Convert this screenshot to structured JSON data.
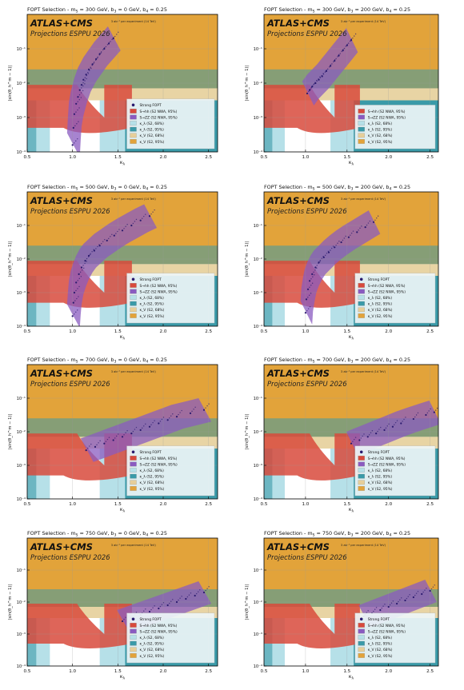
{
  "chart_data": [
    {
      "type": "scatter",
      "title": "FOPT Selection - m_S = 300 GeV, b_3 = 0 GeV, b_4 = 0.25",
      "title_main": "FOPT Selection - m",
      "title_m_sub": "S",
      "title_mid": " = 300 GeV, b",
      "title_b3_sub": "3",
      "title_mid2": " = 0 GeV, b",
      "title_b4_sub": "4",
      "title_end": " = 0.25",
      "xlabel": "κ_λ",
      "xlabel_main": "κ",
      "xlabel_sub": "λ",
      "ylabel": "|sin(θ_h^m − 1)|",
      "xlim": [
        0.5,
        2.6
      ],
      "ylim_log10": [
        -4,
        0
      ],
      "xticks": [
        0.5,
        1.0,
        1.5,
        2.0,
        2.5
      ],
      "xticklabels": [
        "0.5",
        "1.0",
        "1.5",
        "2.0",
        "2.5"
      ],
      "yticks_log10": [
        -4,
        -3,
        -2,
        -1
      ],
      "yticklabels": [
        "10⁻⁴",
        "10⁻³",
        "10⁻²",
        "10⁻¹"
      ],
      "experiment": "ATLAS+CMS",
      "projection": "Projections ESPPU 2026",
      "lumi": "3 ab⁻¹ per experiment (14 TeV)",
      "series": [
        {
          "name": "Strong FOPT",
          "points": [
            [
              1.0,
              -3.8
            ],
            [
              1.01,
              -3.3
            ],
            [
              1.02,
              -2.9
            ],
            [
              1.04,
              -2.6
            ],
            [
              1.06,
              -2.4
            ],
            [
              1.08,
              -2.2
            ],
            [
              1.1,
              -2.05
            ],
            [
              1.12,
              -1.9
            ],
            [
              1.15,
              -1.75
            ],
            [
              1.18,
              -1.6
            ],
            [
              1.22,
              -1.45
            ],
            [
              1.26,
              -1.3
            ],
            [
              1.3,
              -1.15
            ],
            [
              1.35,
              -1.0
            ],
            [
              1.4,
              -0.85
            ],
            [
              1.45,
              -0.7
            ]
          ]
        }
      ],
      "legend": [
        "Strong FOPT",
        "S→hh (S2 NWA, 95%)",
        "S→ZZ (S2 NWA, 95%)",
        "κ_λ (S2, 68%)",
        "κ_λ (S2, 95%)",
        "κ_V (S2, 68%)",
        "κ_V (S2, 95%)"
      ],
      "legend_loc": "lower right"
    },
    {
      "type": "scatter",
      "title": "FOPT Selection - m_S = 300 GeV, b_3 = 200 GeV, b_4 = 0.25",
      "title_main": "FOPT Selection - m",
      "title_m_sub": "S",
      "title_mid": " = 300 GeV, b",
      "title_b3_sub": "3",
      "title_mid2": " = 200 GeV, b",
      "title_b4_sub": "4",
      "title_end": " = 0.25",
      "xlabel": "κ_λ",
      "xlabel_main": "κ",
      "xlabel_sub": "λ",
      "ylabel": "|sin(θ_h^m − 1)|",
      "xlim": [
        0.5,
        2.6
      ],
      "ylim_log10": [
        -4,
        0
      ],
      "xticks": [
        0.5,
        1.0,
        1.5,
        2.0,
        2.5
      ],
      "xticklabels": [
        "0.5",
        "1.0",
        "1.5",
        "2.0",
        "2.5"
      ],
      "yticks_log10": [
        -4,
        -3,
        -2,
        -1
      ],
      "yticklabels": [
        "10⁻⁴",
        "10⁻³",
        "10⁻²",
        "10⁻¹"
      ],
      "experiment": "ATLAS+CMS",
      "projection": "Projections ESPPU 2026",
      "lumi": "3 ab⁻¹ per experiment (14 TeV)",
      "series": [
        {
          "name": "Strong FOPT",
          "points": [
            [
              1.02,
              -2.3
            ],
            [
              1.05,
              -2.2
            ],
            [
              1.08,
              -2.1
            ],
            [
              1.12,
              -2.0
            ],
            [
              1.16,
              -1.9
            ],
            [
              1.2,
              -1.8
            ],
            [
              1.25,
              -1.65
            ],
            [
              1.3,
              -1.5
            ],
            [
              1.35,
              -1.35
            ],
            [
              1.4,
              -1.2
            ],
            [
              1.45,
              -1.05
            ],
            [
              1.5,
              -0.9
            ],
            [
              1.55,
              -0.75
            ]
          ]
        }
      ],
      "legend": [
        "S→hh (S2 NWA, 95%)",
        "S→ZZ (S2 NWA, 95%)",
        "κ_λ (S2, 68%)",
        "κ_λ (S2, 95%)",
        "κ_V (S2, 68%)",
        "κ_V (S2, 95%)"
      ],
      "legend_loc": "lower right"
    },
    {
      "type": "scatter",
      "title": "FOPT Selection - m_S = 500 GeV, b_3 = 0 GeV, b_4 = 0.25",
      "title_main": "FOPT Selection - m",
      "title_m_sub": "S",
      "title_mid": " = 500 GeV, b",
      "title_b3_sub": "3",
      "title_mid2": " = 0 GeV, b",
      "title_b4_sub": "4",
      "title_end": " = 0.25",
      "xlabel": "κ_λ",
      "xlabel_main": "κ",
      "xlabel_sub": "λ",
      "ylabel": "|sin(θ_h^m − 1)|",
      "xlim": [
        0.5,
        2.6
      ],
      "ylim_log10": [
        -4,
        0
      ],
      "xticks": [
        0.5,
        1.0,
        1.5,
        2.0,
        2.5
      ],
      "xticklabels": [
        "0.5",
        "1.0",
        "1.5",
        "2.0",
        "2.5"
      ],
      "yticks_log10": [
        -4,
        -3,
        -2,
        -1
      ],
      "yticklabels": [
        "10⁻⁴",
        "10⁻³",
        "10⁻²",
        "10⁻¹"
      ],
      "experiment": "ATLAS+CMS",
      "projection": "Projections ESPPU 2026",
      "lumi": "3 ab⁻¹ per experiment (14 TeV)",
      "series": [
        {
          "name": "Strong FOPT",
          "points": [
            [
              1.0,
              -3.7
            ],
            [
              1.01,
              -3.3
            ],
            [
              1.02,
              -3.0
            ],
            [
              1.04,
              -2.7
            ],
            [
              1.07,
              -2.45
            ],
            [
              1.1,
              -2.25
            ],
            [
              1.14,
              -2.05
            ],
            [
              1.18,
              -1.9
            ],
            [
              1.24,
              -1.75
            ],
            [
              1.3,
              -1.6
            ],
            [
              1.38,
              -1.45
            ],
            [
              1.46,
              -1.3
            ],
            [
              1.55,
              -1.15
            ],
            [
              1.65,
              -1.0
            ],
            [
              1.75,
              -0.85
            ],
            [
              1.85,
              -0.72
            ]
          ]
        }
      ],
      "legend": [
        "Strong FOPT",
        "S→hh (S2 NWA, 95%)",
        "S→ZZ (S2 NWA, 95%)",
        "κ_λ (S2, 68%)",
        "κ_λ (S2, 95%)",
        "κ_V (S2, 68%)",
        "κ_V (S2, 95%)"
      ],
      "legend_loc": "lower right"
    },
    {
      "type": "scatter",
      "title": "FOPT Selection - m_S = 500 GeV, b_3 = 200 GeV, b_4 = 0.25",
      "title_main": "FOPT Selection - m",
      "title_m_sub": "S",
      "title_mid": " = 500 GeV, b",
      "title_b3_sub": "3",
      "title_mid2": " = 200 GeV, b",
      "title_b4_sub": "4",
      "title_end": " = 0.25",
      "xlabel": "κ_λ",
      "xlabel_main": "κ",
      "xlabel_sub": "λ",
      "ylabel": "|sin(θ_h^m − 1)|",
      "xlim": [
        0.5,
        2.6
      ],
      "ylim_log10": [
        -4,
        0
      ],
      "xticks": [
        0.5,
        1.0,
        1.5,
        2.0,
        2.5
      ],
      "xticklabels": [
        "0.5",
        "1.0",
        "1.5",
        "2.0",
        "2.5"
      ],
      "yticks_log10": [
        -4,
        -3,
        -2,
        -1
      ],
      "yticklabels": [
        "10⁻⁴",
        "10⁻³",
        "10⁻²",
        "10⁻¹"
      ],
      "experiment": "ATLAS+CMS",
      "projection": "Projections ESPPU 2026",
      "lumi": "3 ab⁻¹ per experiment (14 TeV)",
      "series": [
        {
          "name": "Strong FOPT",
          "points": [
            [
              1.0,
              -3.6
            ],
            [
              1.01,
              -3.2
            ],
            [
              1.03,
              -2.9
            ],
            [
              1.05,
              -2.65
            ],
            [
              1.08,
              -2.45
            ],
            [
              1.12,
              -2.25
            ],
            [
              1.16,
              -2.1
            ],
            [
              1.22,
              -1.95
            ],
            [
              1.28,
              -1.8
            ],
            [
              1.35,
              -1.65
            ],
            [
              1.43,
              -1.5
            ],
            [
              1.52,
              -1.35
            ],
            [
              1.62,
              -1.2
            ],
            [
              1.72,
              -1.05
            ],
            [
              1.82,
              -0.9
            ]
          ]
        }
      ],
      "legend": [
        "Strong FOPT",
        "S→hh (S2 NWA, 95%)",
        "S→ZZ (S2 NWA, 95%)",
        "κ_λ (S2, 68%)",
        "κ_λ (S2, 95%)",
        "κ_V (S2, 68%)",
        "κ_V (S2, 95%)"
      ],
      "legend_loc": "lower right"
    },
    {
      "type": "scatter",
      "title": "FOPT Selection - m_S = 700 GeV, b_3 = 0 GeV, b_4 = 0.25",
      "title_main": "FOPT Selection - m",
      "title_m_sub": "S",
      "title_mid": " = 700 GeV, b",
      "title_b3_sub": "3",
      "title_mid2": " = 0 GeV, b",
      "title_b4_sub": "4",
      "title_end": " = 0.25",
      "xlabel": "κ_λ",
      "xlabel_main": "κ",
      "xlabel_sub": "λ",
      "ylabel": "|sin(θ_h^m − 1)|",
      "xlim": [
        0.5,
        2.6
      ],
      "ylim_log10": [
        -4,
        0
      ],
      "xticks": [
        0.5,
        1.0,
        1.5,
        2.0,
        2.5
      ],
      "xticklabels": [
        "0.5",
        "1.0",
        "1.5",
        "2.0",
        "2.5"
      ],
      "yticks_log10": [
        -4,
        -3,
        -2,
        -1
      ],
      "yticklabels": [
        "10⁻⁴",
        "10⁻³",
        "10⁻²",
        "10⁻¹"
      ],
      "experiment": "ATLAS+CMS",
      "projection": "Projections ESPPU 2026",
      "lumi": "3 ab⁻¹ per experiment (14 TeV)",
      "series": [
        {
          "name": "Strong FOPT",
          "points": [
            [
              1.15,
              -2.55
            ],
            [
              1.25,
              -2.45
            ],
            [
              1.35,
              -2.35
            ],
            [
              1.45,
              -2.25
            ],
            [
              1.55,
              -2.15
            ],
            [
              1.65,
              -2.05
            ],
            [
              1.75,
              -1.95
            ],
            [
              1.85,
              -1.85
            ],
            [
              1.95,
              -1.75
            ],
            [
              2.05,
              -1.65
            ],
            [
              2.15,
              -1.55
            ],
            [
              2.3,
              -1.45
            ],
            [
              2.45,
              -1.35
            ]
          ]
        }
      ],
      "legend": [
        "Strong FOPT",
        "S→hh (S2 NWA, 95%)",
        "S→ZZ (S2 NWA, 95%)",
        "κ_λ (S2, 68%)",
        "κ_λ (S2, 95%)",
        "κ_V (S2, 68%)",
        "κ_V (S2, 95%)"
      ],
      "legend_loc": "lower right"
    },
    {
      "type": "scatter",
      "title": "FOPT Selection - m_S = 700 GeV, b_3 = 200 GeV, b_4 = 0.25",
      "title_main": "FOPT Selection - m",
      "title_m_sub": "S",
      "title_mid": " = 700 GeV, b",
      "title_b3_sub": "3",
      "title_mid2": " = 200 GeV, b",
      "title_b4_sub": "4",
      "title_end": " = 0.25",
      "xlabel": "κ_λ",
      "xlabel_main": "κ",
      "xlabel_sub": "λ",
      "ylabel": "|sin(θ_h^m − 1)|",
      "xlim": [
        0.5,
        2.6
      ],
      "ylim_log10": [
        -4,
        0
      ],
      "xticks": [
        0.5,
        1.0,
        1.5,
        2.0,
        2.5
      ],
      "xticklabels": [
        "0.5",
        "1.0",
        "1.5",
        "2.0",
        "2.5"
      ],
      "yticks_log10": [
        -4,
        -3,
        -2,
        -1
      ],
      "yticklabels": [
        "10⁻⁴",
        "10⁻³",
        "10⁻²",
        "10⁻¹"
      ],
      "experiment": "ATLAS+CMS",
      "projection": "Projections ESPPU 2026",
      "lumi": "3 ab⁻¹ per experiment (14 TeV)",
      "series": [
        {
          "name": "Strong FOPT",
          "points": [
            [
              1.55,
              -2.35
            ],
            [
              1.65,
              -2.25
            ],
            [
              1.75,
              -2.15
            ],
            [
              1.85,
              -2.05
            ],
            [
              1.95,
              -1.95
            ],
            [
              2.05,
              -1.85
            ],
            [
              2.15,
              -1.75
            ],
            [
              2.3,
              -1.62
            ],
            [
              2.45,
              -1.5
            ],
            [
              2.55,
              -1.42
            ]
          ]
        }
      ],
      "legend": [
        "Strong FOPT",
        "S→hh (S2 NWA, 95%)",
        "S→ZZ (S2 NWA, 95%)",
        "κ_λ (S2, 68%)",
        "κ_λ (S2, 95%)",
        "κ_V (S2, 68%)",
        "κ_V (S2, 95%)"
      ],
      "legend_loc": "lower right"
    },
    {
      "type": "scatter",
      "title": "FOPT Selection - m_S = 750 GeV, b_3 = 0 GeV, b_4 = 0.25",
      "title_main": "FOPT Selection - m",
      "title_m_sub": "S",
      "title_mid": " = 750 GeV, b",
      "title_b3_sub": "3",
      "title_mid2": " = 0 GeV, b",
      "title_b4_sub": "4",
      "title_end": " = 0.25",
      "xlabel": "κ_λ",
      "xlabel_main": "κ",
      "xlabel_sub": "λ",
      "ylabel": "|sin(θ_h^m − 1)|",
      "xlim": [
        0.5,
        2.6
      ],
      "ylim_log10": [
        -4,
        0
      ],
      "xticks": [
        0.5,
        1.0,
        1.5,
        2.0,
        2.5
      ],
      "xticklabels": [
        "0.5",
        "1.0",
        "1.5",
        "2.0",
        "2.5"
      ],
      "yticks_log10": [
        -4,
        -3,
        -2,
        -1
      ],
      "yticklabels": [
        "10⁻⁴",
        "10⁻³",
        "10⁻²",
        "10⁻¹"
      ],
      "experiment": "ATLAS+CMS",
      "projection": "Projections ESPPU 2026",
      "lumi": "3 ab⁻¹ per experiment (14 TeV)",
      "series": [
        {
          "name": "Strong FOPT",
          "points": [
            [
              1.55,
              -2.6
            ],
            [
              1.65,
              -2.5
            ],
            [
              1.75,
              -2.4
            ],
            [
              1.85,
              -2.3
            ],
            [
              1.95,
              -2.2
            ],
            [
              2.05,
              -2.1
            ],
            [
              2.15,
              -2.0
            ],
            [
              2.25,
              -1.9
            ],
            [
              2.35,
              -1.8
            ],
            [
              2.45,
              -1.7
            ]
          ]
        }
      ],
      "legend": [
        "Strong FOPT",
        "S→hh (S2 NWA, 95%)",
        "S→ZZ (S2 NWA, 95%)",
        "κ_λ (S2, 68%)",
        "κ_λ (S2, 95%)",
        "κ_V (S2, 68%)",
        "κ_V (S2, 95%)"
      ],
      "legend_loc": "lower right"
    },
    {
      "type": "scatter",
      "title": "FOPT Selection - m_S = 750 GeV, b_3 = 200 GeV, b_4 = 0.25",
      "title_main": "FOPT Selection - m",
      "title_m_sub": "S",
      "title_mid": " = 750 GeV, b",
      "title_b3_sub": "3",
      "title_mid2": " = 200 GeV, b",
      "title_b4_sub": "4",
      "title_end": " = 0.25",
      "xlabel": "κ_λ",
      "xlabel_main": "κ",
      "xlabel_sub": "λ",
      "ylabel": "|sin(θ_h^m − 1)|",
      "xlim": [
        0.5,
        2.6
      ],
      "ylim_log10": [
        -4,
        0
      ],
      "xticks": [
        0.5,
        1.0,
        1.5,
        2.0,
        2.5
      ],
      "xticklabels": [
        "0.5",
        "1.0",
        "1.5",
        "2.0",
        "2.5"
      ],
      "yticks_log10": [
        -4,
        -3,
        -2,
        -1
      ],
      "yticklabels": [
        "10⁻⁴",
        "10⁻³",
        "10⁻²",
        "10⁻¹"
      ],
      "experiment": "ATLAS+CMS",
      "projection": "Projections ESPPU 2026",
      "lumi": "3 ab⁻¹ per experiment (14 TeV)",
      "series": [
        {
          "name": "Strong FOPT",
          "points": [
            [
              1.7,
              -2.45
            ],
            [
              1.8,
              -2.35
            ],
            [
              1.9,
              -2.25
            ],
            [
              2.0,
              -2.15
            ],
            [
              2.1,
              -2.05
            ],
            [
              2.2,
              -1.95
            ],
            [
              2.3,
              -1.85
            ],
            [
              2.4,
              -1.75
            ],
            [
              2.5,
              -1.65
            ]
          ]
        }
      ],
      "legend": [
        "Strong FOPT",
        "S→hh (S2 NWA, 95%)",
        "S→ZZ (S2 NWA, 95%)",
        "κ_λ (S2, 68%)",
        "κ_λ (S2, 95%)",
        "κ_V (S2, 68%)",
        "κ_V (S2, 95%)"
      ],
      "legend_loc": "lower right"
    }
  ],
  "colors": {
    "frame_bg": "#ffffff",
    "kv95": "#e2a33a",
    "kv68": "#e6cf9a",
    "kl95": "#3a9aa8",
    "kl68": "#b6e0e8",
    "shh": "#d84a3c",
    "szz": "#8a5bc0",
    "points": "#2a1a6e",
    "text": "#111111"
  }
}
